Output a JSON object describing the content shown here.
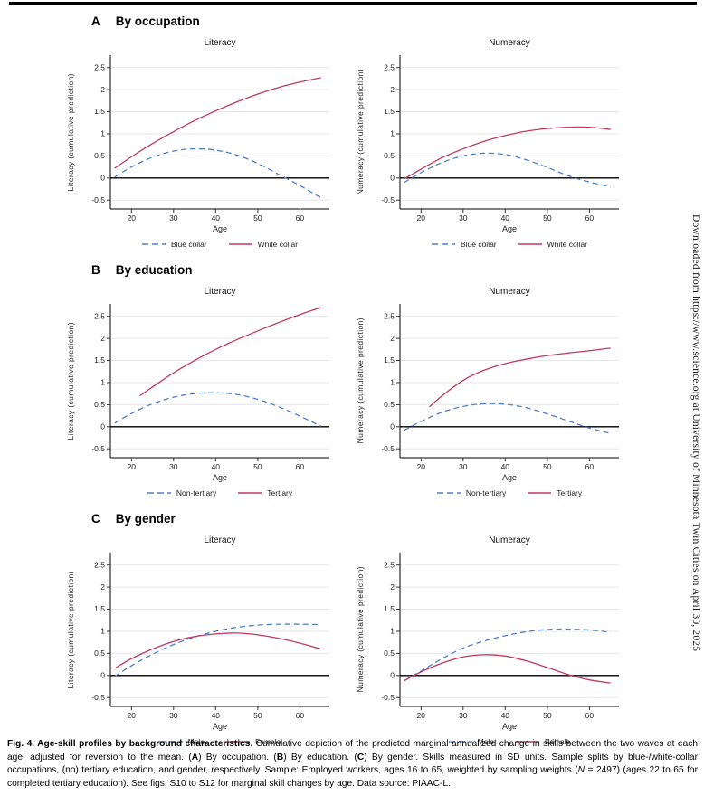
{
  "page": {
    "type": "journal-figure-page",
    "background": "#ffffff",
    "topbar_color": "#000000"
  },
  "sidebar": {
    "text": "Downloaded from https://www.science.org at University of Minnesota Twin Cities on April 30, 2025"
  },
  "colors": {
    "dashed_series": "#4d80cc",
    "solid_series": "#c03a60",
    "zero_line": "#000000",
    "gridline": "#e7e7e7",
    "axis": "#000000"
  },
  "panels": [
    {
      "label": "A",
      "title": "By occupation",
      "chart_indices": [
        0,
        1
      ]
    },
    {
      "label": "B",
      "title": "By education",
      "chart_indices": [
        2,
        3
      ]
    },
    {
      "label": "C",
      "title": "By gender",
      "chart_indices": [
        4,
        5
      ]
    }
  ],
  "chart_data": [
    {
      "type": "line",
      "panel": "A",
      "title": "Literacy",
      "xlabel": "Age",
      "ylabel": "Literacy (cumulative prediction)",
      "xlim": [
        15,
        67
      ],
      "ylim": [
        -0.7,
        2.78
      ],
      "x_ticks": [
        20,
        30,
        40,
        50,
        60
      ],
      "y_ticks": [
        -0.5,
        0,
        0.5,
        1,
        1.5,
        2,
        2.5
      ],
      "zero_line": true,
      "grid": true,
      "legend_position": "bottom",
      "series": [
        {
          "name": "Blue collar",
          "color": "#4d80cc",
          "dash": true,
          "x": [
            16,
            20,
            25,
            30,
            35,
            40,
            45,
            50,
            55,
            60,
            65
          ],
          "y": [
            0.02,
            0.25,
            0.47,
            0.61,
            0.66,
            0.63,
            0.52,
            0.33,
            0.08,
            -0.17,
            -0.45
          ]
        },
        {
          "name": "White collar",
          "color": "#c03a60",
          "dash": false,
          "x": [
            16,
            20,
            25,
            30,
            35,
            40,
            45,
            50,
            55,
            60,
            65
          ],
          "y": [
            0.22,
            0.48,
            0.78,
            1.05,
            1.3,
            1.52,
            1.72,
            1.9,
            2.05,
            2.17,
            2.27
          ]
        }
      ]
    },
    {
      "type": "line",
      "panel": "A",
      "title": "Numeracy",
      "xlabel": "Age",
      "ylabel": "Numeracy (cumulative prediction)",
      "xlim": [
        15,
        67
      ],
      "ylim": [
        -0.7,
        2.78
      ],
      "x_ticks": [
        20,
        30,
        40,
        50,
        60
      ],
      "y_ticks": [
        -0.5,
        0,
        0.5,
        1,
        1.5,
        2,
        2.5
      ],
      "zero_line": true,
      "grid": true,
      "legend_position": "bottom",
      "series": [
        {
          "name": "Blue collar",
          "color": "#4d80cc",
          "dash": true,
          "x": [
            16,
            20,
            25,
            30,
            35,
            40,
            45,
            50,
            55,
            60,
            65
          ],
          "y": [
            -0.1,
            0.12,
            0.35,
            0.5,
            0.56,
            0.53,
            0.41,
            0.24,
            0.05,
            -0.09,
            -0.2
          ]
        },
        {
          "name": "White collar",
          "color": "#c03a60",
          "dash": false,
          "x": [
            16,
            20,
            25,
            30,
            35,
            40,
            45,
            50,
            55,
            60,
            65
          ],
          "y": [
            -0.02,
            0.2,
            0.46,
            0.66,
            0.83,
            0.96,
            1.06,
            1.12,
            1.15,
            1.15,
            1.1
          ]
        }
      ]
    },
    {
      "type": "line",
      "panel": "B",
      "title": "Literacy",
      "xlabel": "Age",
      "ylabel": "Literacy (cumulative prediction)",
      "xlim": [
        15,
        67
      ],
      "ylim": [
        -0.7,
        2.78
      ],
      "x_ticks": [
        20,
        30,
        40,
        50,
        60
      ],
      "y_ticks": [
        -0.5,
        0,
        0.5,
        1,
        1.5,
        2,
        2.5
      ],
      "zero_line": true,
      "grid": true,
      "legend_position": "bottom",
      "series": [
        {
          "name": "Non-tertiary",
          "color": "#4d80cc",
          "dash": true,
          "x": [
            16,
            20,
            25,
            30,
            35,
            40,
            45,
            50,
            55,
            60,
            65
          ],
          "y": [
            0.08,
            0.3,
            0.52,
            0.67,
            0.75,
            0.77,
            0.73,
            0.62,
            0.45,
            0.24,
            0.01
          ]
        },
        {
          "name": "Tertiary",
          "color": "#c03a60",
          "dash": false,
          "x": [
            22,
            25,
            30,
            35,
            40,
            45,
            50,
            55,
            60,
            65
          ],
          "y": [
            0.7,
            0.9,
            1.22,
            1.5,
            1.75,
            1.97,
            2.17,
            2.36,
            2.54,
            2.7
          ]
        }
      ]
    },
    {
      "type": "line",
      "panel": "B",
      "title": "Numeracy",
      "xlabel": "Age",
      "ylabel": "Numeracy (cumulative prediction)",
      "xlim": [
        15,
        67
      ],
      "ylim": [
        -0.7,
        2.78
      ],
      "x_ticks": [
        20,
        30,
        40,
        50,
        60
      ],
      "y_ticks": [
        -0.5,
        0,
        0.5,
        1,
        1.5,
        2,
        2.5
      ],
      "zero_line": true,
      "grid": true,
      "legend_position": "bottom",
      "series": [
        {
          "name": "Non-tertiary",
          "color": "#4d80cc",
          "dash": true,
          "x": [
            16,
            20,
            25,
            30,
            35,
            40,
            45,
            50,
            55,
            60,
            65
          ],
          "y": [
            -0.08,
            0.12,
            0.33,
            0.46,
            0.52,
            0.51,
            0.43,
            0.29,
            0.13,
            -0.03,
            -0.15
          ]
        },
        {
          "name": "Tertiary",
          "color": "#c03a60",
          "dash": false,
          "x": [
            22,
            25,
            30,
            35,
            40,
            45,
            50,
            55,
            60,
            65
          ],
          "y": [
            0.45,
            0.7,
            1.05,
            1.28,
            1.43,
            1.53,
            1.61,
            1.67,
            1.72,
            1.78
          ]
        }
      ]
    },
    {
      "type": "line",
      "panel": "C",
      "title": "Literacy",
      "xlabel": "Age",
      "ylabel": "Literacy (cumulative prediction)",
      "xlim": [
        15,
        67
      ],
      "ylim": [
        -0.7,
        2.78
      ],
      "x_ticks": [
        20,
        30,
        40,
        50,
        60
      ],
      "y_ticks": [
        -0.5,
        0,
        0.5,
        1,
        1.5,
        2,
        2.5
      ],
      "zero_line": true,
      "grid": true,
      "legend_position": "bottom",
      "series": [
        {
          "name": "Male",
          "color": "#4d80cc",
          "dash": true,
          "x": [
            16,
            20,
            25,
            30,
            35,
            40,
            45,
            50,
            55,
            60,
            65
          ],
          "y": [
            -0.02,
            0.22,
            0.48,
            0.7,
            0.87,
            1.0,
            1.09,
            1.14,
            1.16,
            1.16,
            1.15
          ]
        },
        {
          "name": "Female",
          "color": "#c03a60",
          "dash": false,
          "x": [
            16,
            20,
            25,
            30,
            35,
            40,
            45,
            50,
            55,
            60,
            65
          ],
          "y": [
            0.16,
            0.38,
            0.6,
            0.77,
            0.88,
            0.94,
            0.96,
            0.92,
            0.84,
            0.73,
            0.6
          ]
        }
      ]
    },
    {
      "type": "line",
      "panel": "C",
      "title": "Numeracy",
      "xlabel": "Age",
      "ylabel": "Numeracy (cumulative prediction)",
      "xlim": [
        15,
        67
      ],
      "ylim": [
        -0.7,
        2.78
      ],
      "x_ticks": [
        20,
        30,
        40,
        50,
        60
      ],
      "y_ticks": [
        -0.5,
        0,
        0.5,
        1,
        1.5,
        2,
        2.5
      ],
      "zero_line": true,
      "grid": true,
      "legend_position": "bottom",
      "series": [
        {
          "name": "Male",
          "color": "#4d80cc",
          "dash": true,
          "x": [
            16,
            20,
            25,
            30,
            35,
            40,
            45,
            50,
            55,
            60,
            65
          ],
          "y": [
            -0.12,
            0.1,
            0.38,
            0.62,
            0.78,
            0.9,
            0.99,
            1.04,
            1.05,
            1.03,
            0.98
          ]
        },
        {
          "name": "Female",
          "color": "#c03a60",
          "dash": false,
          "x": [
            16,
            20,
            25,
            30,
            35,
            40,
            45,
            50,
            55,
            60,
            65
          ],
          "y": [
            -0.12,
            0.08,
            0.28,
            0.42,
            0.47,
            0.44,
            0.33,
            0.18,
            0.02,
            -0.1,
            -0.17
          ]
        }
      ]
    }
  ],
  "caption": {
    "segments": [
      {
        "text": "Fig. 4. Age-skill profiles by background characteristics.",
        "bold": true
      },
      {
        "text": " Cumulative depiction of the predicted marginal annualized change in skills between the two waves at each age, adjusted for reversion to the mean. ("
      },
      {
        "text": "A",
        "bold": true
      },
      {
        "text": ") By occupation. ("
      },
      {
        "text": "B",
        "bold": true
      },
      {
        "text": ") By education. ("
      },
      {
        "text": "C",
        "bold": true
      },
      {
        "text": ") By gender. Skills measured in SD units. Sample splits by blue-/white-collar occupations, (no) tertiary education, and gender, respectively. Sample: Employed workers, ages 16 to 65, weighted by sampling weights ("
      },
      {
        "text": "N",
        "italic": true
      },
      {
        "text": " = 2497) (ages 22 to 65 for completed tertiary education). See figs. S10 to S12 for marginal skill changes by age. Data source: PIAAC-L."
      }
    ]
  }
}
